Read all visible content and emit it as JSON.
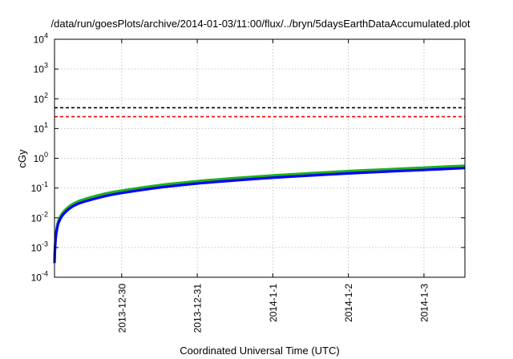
{
  "chart_data": {
    "type": "line",
    "title": "/data/run/goesPlots/archive/2014-01-03/11:00/flux/../bryn/5daysEarthDataAccumulated.plot",
    "xlabel": "Coordinated Universal Time (UTC)",
    "ylabel": "cGy",
    "y_scale": "log",
    "ylim": [
      0.0001,
      10000
    ],
    "xlim": [
      "2013-12-29T02:40",
      "2014-01-03T13:00"
    ],
    "y_ticks": [
      {
        "value": 0.0001,
        "base": "10",
        "exp": "-4"
      },
      {
        "value": 0.001,
        "base": "10",
        "exp": "-3"
      },
      {
        "value": 0.01,
        "base": "10",
        "exp": "-2"
      },
      {
        "value": 0.1,
        "base": "10",
        "exp": "-1"
      },
      {
        "value": 1,
        "base": "10",
        "exp": "0"
      },
      {
        "value": 10,
        "base": "10",
        "exp": "1"
      },
      {
        "value": 100,
        "base": "10",
        "exp": "2"
      },
      {
        "value": 1000,
        "base": "10",
        "exp": "3"
      },
      {
        "value": 10000,
        "base": "10",
        "exp": "4"
      }
    ],
    "x_ticks": [
      {
        "value": "2013-12-30T00:00",
        "label": "2013-12-30"
      },
      {
        "value": "2013-12-31T00:00",
        "label": "2013-12-31"
      },
      {
        "value": "2014-01-01T00:00",
        "label": "2014-1-1"
      },
      {
        "value": "2014-01-02T00:00",
        "label": "2014-1-2"
      },
      {
        "value": "2014-01-03T00:00",
        "label": "2014-1-3"
      }
    ],
    "grid": true,
    "legend": "none",
    "series": [
      {
        "color": "#1db31d",
        "style": "solid",
        "x": [
          "2013-12-29T02:40",
          "2013-12-29T02:50",
          "2013-12-29T03:10",
          "2013-12-29T04:00",
          "2013-12-29T06:00",
          "2013-12-29T10:00",
          "2013-12-29T18:00",
          "2013-12-30T00:00",
          "2013-12-30T12:00",
          "2013-12-31T00:00",
          "2013-12-31T12:00",
          "2014-01-01T00:00",
          "2014-01-01T12:00",
          "2014-01-02T00:00",
          "2014-01-02T12:00",
          "2014-01-03T00:00",
          "2014-01-03T13:00"
        ],
        "y": [
          0.0004,
          0.0011,
          0.0032,
          0.0085,
          0.018,
          0.035,
          0.062,
          0.082,
          0.125,
          0.17,
          0.215,
          0.265,
          0.315,
          0.37,
          0.425,
          0.485,
          0.56
        ]
      },
      {
        "color": "#0000ff",
        "style": "solid",
        "x": [
          "2013-12-29T02:40",
          "2013-12-29T02:50",
          "2013-12-29T03:10",
          "2013-12-29T04:00",
          "2013-12-29T06:00",
          "2013-12-29T10:00",
          "2013-12-29T18:00",
          "2013-12-30T00:00",
          "2013-12-30T12:00",
          "2013-12-31T00:00",
          "2013-12-31T12:00",
          "2014-01-01T00:00",
          "2014-01-01T12:00",
          "2014-01-02T00:00",
          "2014-01-02T12:00",
          "2014-01-03T00:00",
          "2014-01-03T13:00"
        ],
        "y": [
          0.0003,
          0.0009,
          0.0026,
          0.007,
          0.015,
          0.029,
          0.051,
          0.068,
          0.104,
          0.142,
          0.18,
          0.222,
          0.264,
          0.31,
          0.356,
          0.405,
          0.47
        ]
      },
      {
        "color": "#000000",
        "style": "dashed",
        "x": [
          "2013-12-29T02:40",
          "2014-01-03T13:00"
        ],
        "y": [
          50,
          50
        ]
      },
      {
        "color": "#ff0000",
        "style": "dashed",
        "x": [
          "2013-12-29T02:40",
          "2014-01-03T13:00"
        ],
        "y": [
          25,
          25
        ]
      }
    ]
  }
}
